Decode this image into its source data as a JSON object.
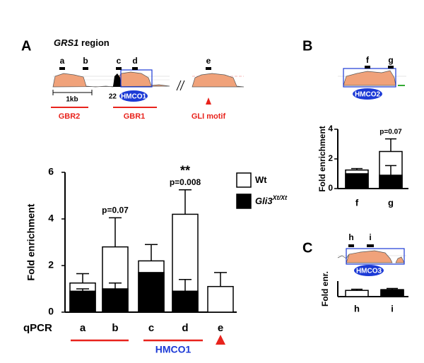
{
  "panels": {
    "A": {
      "letter": "A",
      "title": "GRS1",
      "title_rest": " region",
      "sites": [
        "a",
        "b",
        "c",
        "d",
        "e"
      ],
      "scale": "1kb",
      "number": "22",
      "element": "HMCO1",
      "regions": [
        "GBR2",
        "GBR1",
        "GLI motif"
      ],
      "bracket": "HMCO1"
    },
    "B": {
      "letter": "B",
      "sites": [
        "f",
        "g"
      ],
      "element": "HMCO2"
    },
    "C": {
      "letter": "C",
      "sites": [
        "h",
        "i"
      ],
      "element": "HMCO3"
    }
  },
  "chart_data": [
    {
      "type": "bar",
      "xlabel": "qPCR",
      "ylabel": "Fold enrichment",
      "categories": [
        "a",
        "b",
        "c",
        "d",
        "e"
      ],
      "series": [
        {
          "name": "Wt",
          "color": "#ffffff",
          "values": [
            1.25,
            2.8,
            2.2,
            4.2,
            1.1
          ],
          "errors": [
            0.4,
            1.25,
            0.7,
            1.05,
            0.6
          ]
        },
        {
          "name": "Gli3",
          "name_superscript": "Xt/Xt",
          "color": "#000000",
          "values": [
            0.9,
            1.0,
            1.7,
            0.9,
            null
          ],
          "errors": [
            0.1,
            0.25,
            null,
            0.5,
            null
          ]
        }
      ],
      "annotations": [
        {
          "category": "b",
          "text": "p=0.07"
        },
        {
          "category": "d",
          "text": "p=0.008",
          "stars": "**"
        }
      ],
      "ylim": [
        0,
        6
      ],
      "yticks": [
        0,
        2,
        4,
        6
      ]
    },
    {
      "type": "bar",
      "ylabel": "Fold enrichment",
      "categories": [
        "f",
        "g"
      ],
      "series": [
        {
          "name": "Wt",
          "color": "#ffffff",
          "values": [
            1.25,
            2.5
          ],
          "errors": [
            0.1,
            0.85
          ]
        },
        {
          "name": "Gli3",
          "color": "#000000",
          "values": [
            1.0,
            0.9
          ],
          "errors": [
            null,
            0.65
          ]
        }
      ],
      "annotations": [
        {
          "category": "g",
          "text": "p=0.07"
        }
      ],
      "ylim": [
        0,
        4
      ],
      "yticks": [
        0,
        2,
        4
      ]
    },
    {
      "type": "bar",
      "ylabel": "Fold enr.",
      "categories": [
        "h",
        "i"
      ],
      "series": [
        {
          "name": "Wt",
          "color": "#ffffff",
          "values": [
            0.8,
            0.9
          ],
          "errors": [
            0.15,
            0.15
          ]
        },
        {
          "name": "Gli3",
          "color": "#000000",
          "values": [
            null,
            0.8
          ],
          "errors": [
            null,
            0.1
          ]
        }
      ],
      "ylim": [
        0,
        2
      ]
    }
  ]
}
